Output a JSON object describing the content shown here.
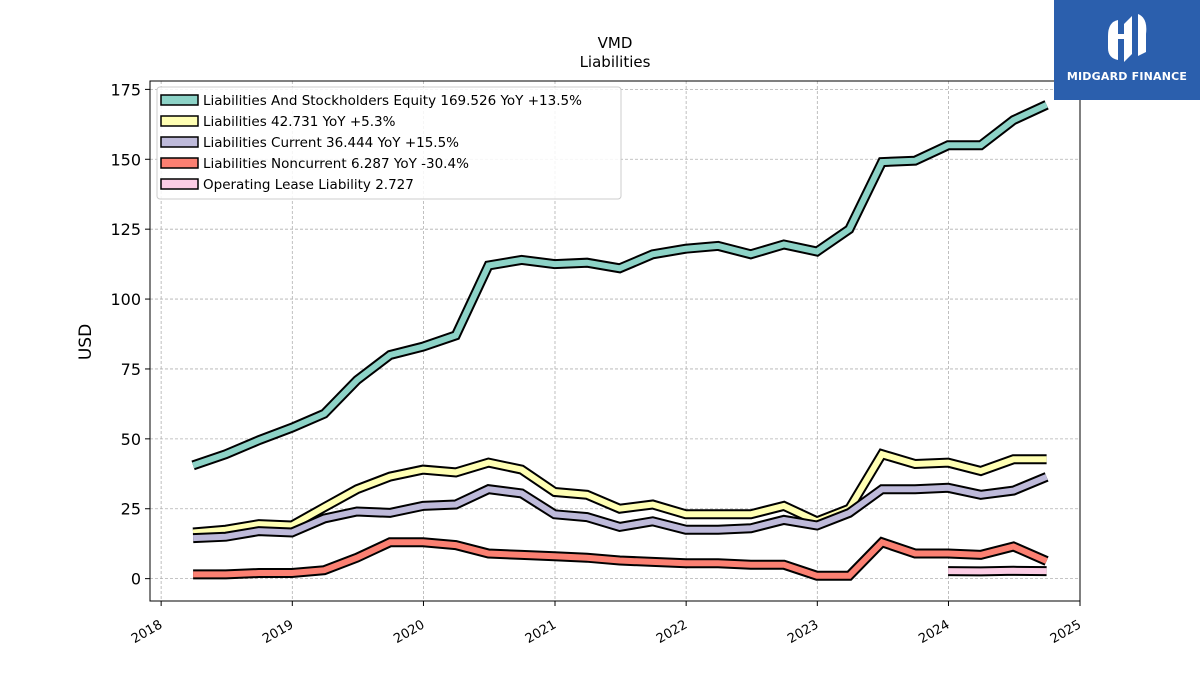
{
  "chart_data": {
    "type": "line",
    "title": "VMD",
    "subtitle": "Liabilities",
    "ylabel": "USD",
    "xlabel": "",
    "xlim": [
      "2017-12-01",
      "2025-01-01"
    ],
    "ylim": [
      -8,
      178
    ],
    "grid": true,
    "legend_position": "top-left",
    "y_ticks": [
      0,
      25,
      50,
      75,
      100,
      125,
      150,
      175
    ],
    "x_ticks": [
      {
        "label": "2018",
        "date": "2018-01-01"
      },
      {
        "label": "2019",
        "date": "2019-01-01"
      },
      {
        "label": "2020",
        "date": "2020-01-01"
      },
      {
        "label": "2021",
        "date": "2021-01-01"
      },
      {
        "label": "2022",
        "date": "2022-01-01"
      },
      {
        "label": "2023",
        "date": "2023-01-01"
      },
      {
        "label": "2024",
        "date": "2024-01-01"
      },
      {
        "label": "2025",
        "date": "2025-01-01"
      }
    ],
    "series": [
      {
        "name": "Liabilities And Stockholders Equity",
        "legend": "Liabilities And Stockholders Equity  169.526 YoY +13.5%",
        "color": "#8dd3c7",
        "points": [
          [
            "2018-03-31",
            40.5
          ],
          [
            "2018-06-30",
            44.5
          ],
          [
            "2018-09-30",
            49.5
          ],
          [
            "2018-12-31",
            54
          ],
          [
            "2019-03-31",
            59
          ],
          [
            "2019-06-30",
            71
          ],
          [
            "2019-09-30",
            80
          ],
          [
            "2019-12-31",
            83
          ],
          [
            "2020-03-31",
            87
          ],
          [
            "2020-06-30",
            112
          ],
          [
            "2020-09-30",
            114
          ],
          [
            "2020-12-31",
            112.5
          ],
          [
            "2021-03-31",
            113
          ],
          [
            "2021-06-30",
            111
          ],
          [
            "2021-09-30",
            116
          ],
          [
            "2021-12-31",
            118
          ],
          [
            "2022-03-31",
            119
          ],
          [
            "2022-06-30",
            116
          ],
          [
            "2022-09-30",
            119.5
          ],
          [
            "2022-12-31",
            117
          ],
          [
            "2023-03-31",
            125
          ],
          [
            "2023-06-30",
            149
          ],
          [
            "2023-09-30",
            149.5
          ],
          [
            "2023-12-31",
            155
          ],
          [
            "2024-03-31",
            155
          ],
          [
            "2024-06-30",
            164
          ],
          [
            "2024-09-30",
            169.5
          ]
        ]
      },
      {
        "name": "Liabilities",
        "legend": "Liabilities  42.731 YoY +5.3%",
        "color": "#ffffb3",
        "points": [
          [
            "2018-03-31",
            16.5
          ],
          [
            "2018-06-30",
            17.5
          ],
          [
            "2018-09-30",
            19.5
          ],
          [
            "2018-12-31",
            19
          ],
          [
            "2019-03-31",
            25.5
          ],
          [
            "2019-06-30",
            32
          ],
          [
            "2019-09-30",
            36.5
          ],
          [
            "2019-12-31",
            39
          ],
          [
            "2020-03-31",
            38
          ],
          [
            "2020-06-30",
            41.5
          ],
          [
            "2020-09-30",
            39
          ],
          [
            "2020-12-31",
            31
          ],
          [
            "2021-03-31",
            30
          ],
          [
            "2021-06-30",
            25
          ],
          [
            "2021-09-30",
            26.5
          ],
          [
            "2021-12-31",
            23
          ],
          [
            "2022-03-31",
            23
          ],
          [
            "2022-06-30",
            23
          ],
          [
            "2022-09-30",
            26
          ],
          [
            "2022-12-31",
            20.5
          ],
          [
            "2023-03-31",
            25
          ],
          [
            "2023-06-30",
            44.5
          ],
          [
            "2023-09-30",
            41
          ],
          [
            "2023-12-31",
            41.5
          ],
          [
            "2024-03-31",
            38.5
          ],
          [
            "2024-06-30",
            42.7
          ],
          [
            "2024-09-30",
            42.7
          ]
        ]
      },
      {
        "name": "Liabilities Current",
        "legend": "Liabilities Current  36.444 YoY +15.5%",
        "color": "#bebada",
        "points": [
          [
            "2018-03-31",
            14.5
          ],
          [
            "2018-06-30",
            15
          ],
          [
            "2018-09-30",
            17
          ],
          [
            "2018-12-31",
            16.5
          ],
          [
            "2019-03-31",
            21.5
          ],
          [
            "2019-06-30",
            24
          ],
          [
            "2019-09-30",
            23.5
          ],
          [
            "2019-12-31",
            26
          ],
          [
            "2020-03-31",
            26.5
          ],
          [
            "2020-06-30",
            32
          ],
          [
            "2020-09-30",
            30.5
          ],
          [
            "2020-12-31",
            23
          ],
          [
            "2021-03-31",
            22
          ],
          [
            "2021-06-30",
            18.5
          ],
          [
            "2021-09-30",
            20.5
          ],
          [
            "2021-12-31",
            17.5
          ],
          [
            "2022-03-31",
            17.5
          ],
          [
            "2022-06-30",
            18
          ],
          [
            "2022-09-30",
            21
          ],
          [
            "2022-12-31",
            19
          ],
          [
            "2023-03-31",
            23.5
          ],
          [
            "2023-06-30",
            32
          ],
          [
            "2023-09-30",
            32
          ],
          [
            "2023-12-31",
            32.5
          ],
          [
            "2024-03-31",
            30
          ],
          [
            "2024-06-30",
            31.5
          ],
          [
            "2024-09-30",
            36.4
          ]
        ]
      },
      {
        "name": "Liabilities Noncurrent",
        "legend": "Liabilities Noncurrent  6.287 YoY -30.4%",
        "color": "#fb8072",
        "points": [
          [
            "2018-03-31",
            1.5
          ],
          [
            "2018-06-30",
            1.5
          ],
          [
            "2018-09-30",
            2
          ],
          [
            "2018-12-31",
            2
          ],
          [
            "2019-03-31",
            3
          ],
          [
            "2019-06-30",
            7.5
          ],
          [
            "2019-09-30",
            13
          ],
          [
            "2019-12-31",
            13
          ],
          [
            "2020-03-31",
            12
          ],
          [
            "2020-06-30",
            9
          ],
          [
            "2020-09-30",
            8.5
          ],
          [
            "2020-12-31",
            8
          ],
          [
            "2021-03-31",
            7.5
          ],
          [
            "2021-06-30",
            6.5
          ],
          [
            "2021-09-30",
            6
          ],
          [
            "2021-12-31",
            5.5
          ],
          [
            "2022-03-31",
            5.5
          ],
          [
            "2022-06-30",
            5
          ],
          [
            "2022-09-30",
            5
          ],
          [
            "2022-12-31",
            1
          ],
          [
            "2023-03-31",
            1
          ],
          [
            "2023-06-30",
            13
          ],
          [
            "2023-09-30",
            9
          ],
          [
            "2023-12-31",
            9
          ],
          [
            "2024-03-31",
            8.5
          ],
          [
            "2024-06-30",
            11.5
          ],
          [
            "2024-09-30",
            6.3
          ]
        ]
      },
      {
        "name": "Operating Lease Liability",
        "legend": "Operating Lease Liability  2.727",
        "color": "#fccde5",
        "points": [
          [
            "2023-12-31",
            2.7
          ],
          [
            "2024-03-31",
            2.6
          ],
          [
            "2024-06-30",
            2.8
          ],
          [
            "2024-09-30",
            2.7
          ]
        ]
      }
    ]
  },
  "logo": {
    "text": "MIDGARD FINANCE",
    "color": "#2b5fad"
  }
}
